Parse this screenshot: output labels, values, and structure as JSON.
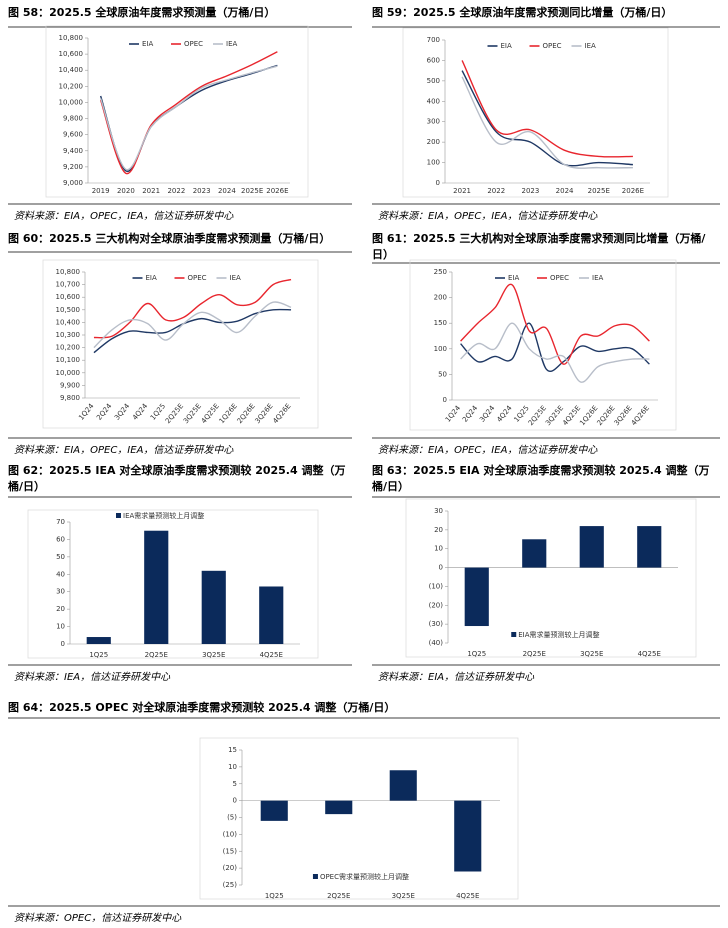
{
  "chart_data": [
    {
      "type": "line",
      "title": "图 58：2025.5 全球原油年度需求预测量（万桶/日）",
      "source": "资料来源：EIA，OPEC，IEA，信达证券研发中心",
      "categories": [
        "2019",
        "2020",
        "2021",
        "2022",
        "2023",
        "2024",
        "2025E",
        "2026E"
      ],
      "series": [
        {
          "name": "EIA",
          "color": "#1f3864",
          "values": [
            10080,
            9150,
            9700,
            9950,
            10150,
            10270,
            10360,
            10460
          ]
        },
        {
          "name": "OPEC",
          "color": "#e8262e",
          "values": [
            10030,
            9120,
            9720,
            9980,
            10200,
            10330,
            10470,
            10630
          ]
        },
        {
          "name": "IEA",
          "color": "#b8bec9",
          "values": [
            10050,
            9170,
            9700,
            9950,
            10180,
            10280,
            10370,
            10450
          ]
        }
      ],
      "ylim": [
        9000,
        10800
      ],
      "yticks": [
        {
          "value": 9000,
          "label": "9,000"
        },
        {
          "value": 9200,
          "label": "9,200"
        },
        {
          "value": 9400,
          "label": "9,400"
        },
        {
          "value": 9600,
          "label": "9,600"
        },
        {
          "value": 9800,
          "label": "9,800"
        },
        {
          "value": 10000,
          "label": "10,000"
        },
        {
          "value": 10200,
          "label": "10,200"
        },
        {
          "value": 10400,
          "label": "10,400"
        },
        {
          "value": 10600,
          "label": "10,600"
        },
        {
          "value": 10800,
          "label": "10,800"
        }
      ],
      "legend": "top"
    },
    {
      "type": "line",
      "title": "图 59：2025.5 全球原油年度需求预测同比增量（万桶/日）",
      "source": "资料来源：EIA，OPEC，IEA，信达证券研发中心",
      "categories": [
        "2021",
        "2022",
        "2023",
        "2024",
        "2025E",
        "2026E"
      ],
      "series": [
        {
          "name": "EIA",
          "color": "#1f3864",
          "values": [
            550,
            250,
            200,
            90,
            100,
            90
          ]
        },
        {
          "name": "OPEC",
          "color": "#e8262e",
          "values": [
            600,
            260,
            260,
            160,
            130,
            130
          ]
        },
        {
          "name": "IEA",
          "color": "#b8bec9",
          "values": [
            520,
            200,
            250,
            90,
            75,
            75
          ]
        }
      ],
      "ylim": [
        0,
        700
      ],
      "yticks": [
        0,
        100,
        200,
        300,
        400,
        500,
        600,
        700
      ],
      "legend": "top"
    },
    {
      "type": "line",
      "title": "图 60：2025.5 三大机构对全球原油季度需求预测量（万桶/日）",
      "source": "资料来源：EIA，OPEC，IEA，信达证券研发中心",
      "categories": [
        "1Q24",
        "2Q24",
        "3Q24",
        "4Q24",
        "1Q25",
        "2Q25E",
        "3Q25E",
        "4Q25E",
        "1Q26E",
        "2Q26E",
        "3Q26E",
        "4Q26E"
      ],
      "series": [
        {
          "name": "EIA",
          "color": "#1f3864",
          "values": [
            10160,
            10270,
            10330,
            10320,
            10320,
            10390,
            10430,
            10400,
            10410,
            10470,
            10500,
            10500
          ]
        },
        {
          "name": "OPEC",
          "color": "#e8262e",
          "values": [
            10280,
            10290,
            10400,
            10550,
            10420,
            10440,
            10550,
            10620,
            10540,
            10560,
            10700,
            10740
          ]
        },
        {
          "name": "IEA",
          "color": "#b8bec9",
          "values": [
            10200,
            10340,
            10420,
            10390,
            10260,
            10390,
            10480,
            10420,
            10320,
            10450,
            10560,
            10520
          ]
        }
      ],
      "ylim": [
        9800,
        10800
      ],
      "yticks": [
        {
          "value": 9800,
          "label": "9,800"
        },
        {
          "value": 9900,
          "label": "9,900"
        },
        {
          "value": 10000,
          "label": "10,000"
        },
        {
          "value": 10100,
          "label": "10,100"
        },
        {
          "value": 10200,
          "label": "10,200"
        },
        {
          "value": 10300,
          "label": "10,300"
        },
        {
          "value": 10400,
          "label": "10,400"
        },
        {
          "value": 10500,
          "label": "10,500"
        },
        {
          "value": 10600,
          "label": "10,600"
        },
        {
          "value": 10700,
          "label": "10,700"
        },
        {
          "value": 10800,
          "label": "10,800"
        }
      ],
      "legend": "top"
    },
    {
      "type": "line",
      "title": "图 61：2025.5 三大机构对全球原油季度需求预测同比增量（万桶/日）",
      "source": "资料来源：EIA，OPEC，IEA，信达证券研发中心",
      "categories": [
        "1Q24",
        "2Q24",
        "3Q24",
        "4Q24",
        "1Q25",
        "2Q25E",
        "3Q25E",
        "4Q25E",
        "1Q26E",
        "2Q26E",
        "3Q26E",
        "4Q26E"
      ],
      "series": [
        {
          "name": "EIA",
          "color": "#1f3864",
          "values": [
            110,
            75,
            85,
            80,
            150,
            60,
            75,
            105,
            95,
            100,
            100,
            70
          ]
        },
        {
          "name": "OPEC",
          "color": "#e8262e",
          "values": [
            115,
            150,
            180,
            225,
            135,
            140,
            70,
            125,
            125,
            145,
            145,
            115
          ]
        },
        {
          "name": "IEA",
          "color": "#b8bec9",
          "values": [
            80,
            110,
            100,
            150,
            100,
            80,
            85,
            35,
            65,
            75,
            80,
            80
          ]
        }
      ],
      "ylim": [
        0,
        250
      ],
      "yticks": [
        0,
        50,
        100,
        150,
        200,
        250
      ],
      "legend": "top"
    },
    {
      "type": "bar",
      "title": "图 62：2025.5 IEA 对全球原油季度需求预测较 2025.4 调整（万桶/日）",
      "source": "资料来源：IEA，信达证券研发中心",
      "categories": [
        "1Q25",
        "2Q25E",
        "3Q25E",
        "4Q25E"
      ],
      "series": [
        {
          "name": "IEA需求量预测较上月调整",
          "color": "#0b2a5b",
          "values": [
            4,
            65,
            42,
            33
          ]
        }
      ],
      "ylim": [
        0,
        70
      ],
      "yticks": [
        0,
        10,
        20,
        30,
        40,
        50,
        60,
        70
      ],
      "legend": "top"
    },
    {
      "type": "bar",
      "title": "图 63：2025.5 EIA 对全球原油季度需求预测较 2025.4 调整（万桶/日）",
      "source": "资料来源：EIA，信达证券研发中心",
      "categories": [
        "1Q25",
        "2Q25E",
        "3Q25E",
        "4Q25E"
      ],
      "series": [
        {
          "name": "EIA需求量预测较上月调整",
          "color": "#0b2a5b",
          "values": [
            -31,
            15,
            22,
            22
          ]
        }
      ],
      "ylim": [
        -40,
        30
      ],
      "yticks": [
        {
          "value": -40,
          "label": "(40)"
        },
        {
          "value": -30,
          "label": "(30)"
        },
        {
          "value": -20,
          "label": "(20)"
        },
        {
          "value": -10,
          "label": "(10)"
        },
        0,
        10,
        20,
        30
      ],
      "legend": "bottom"
    },
    {
      "type": "bar",
      "title": "图 64：2025.5 OPEC 对全球原油季度需求预测较 2025.4 调整（万桶/日）",
      "source": "资料来源：OPEC，信达证券研发中心",
      "categories": [
        "1Q25",
        "2Q25E",
        "3Q25E",
        "4Q25E"
      ],
      "series": [
        {
          "name": "OPEC需求量预测较上月调整",
          "color": "#0b2a5b",
          "values": [
            -6,
            -4,
            9,
            -21
          ]
        }
      ],
      "ylim": [
        -25,
        15
      ],
      "yticks": [
        {
          "value": -25,
          "label": "(25)"
        },
        {
          "value": -20,
          "label": "(20)"
        },
        {
          "value": -15,
          "label": "(15)"
        },
        {
          "value": -10,
          "label": "(10)"
        },
        {
          "value": -5,
          "label": "(5)"
        },
        0,
        5,
        10,
        15
      ],
      "legend": "bottom"
    }
  ]
}
